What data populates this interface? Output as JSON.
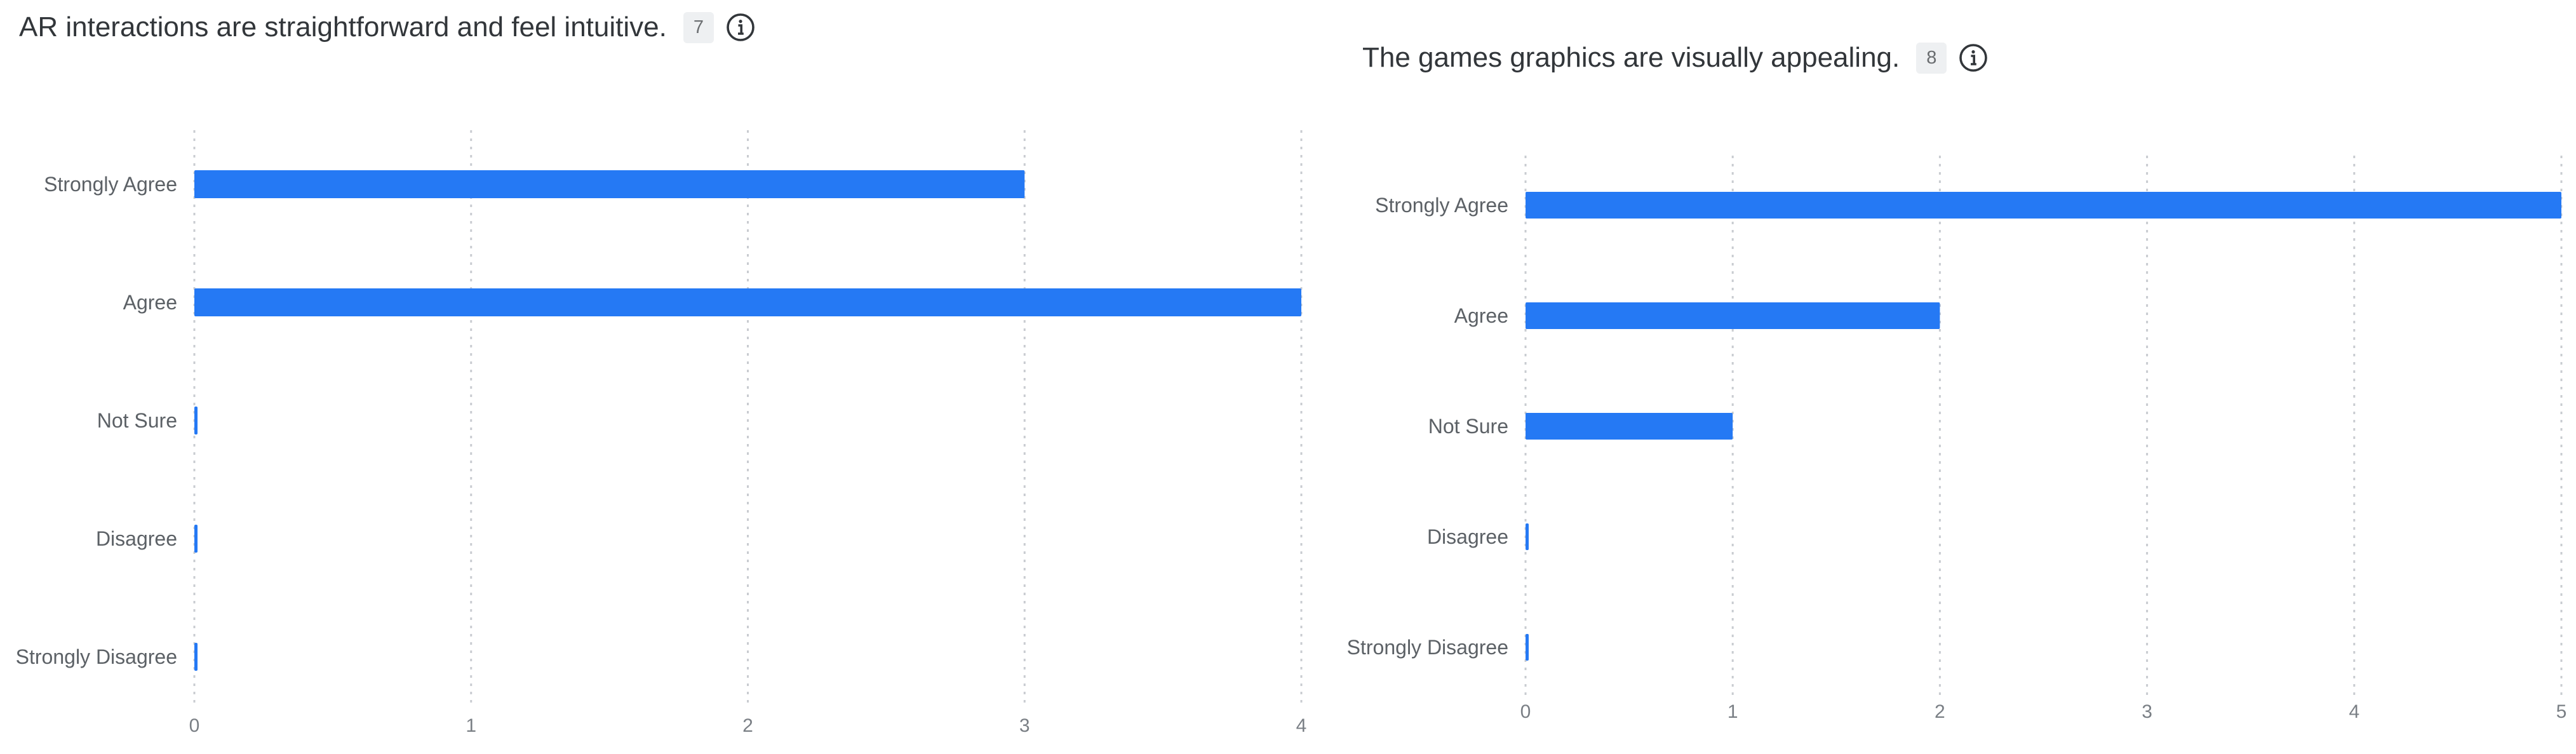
{
  "colors": {
    "bar": "#2579f4",
    "grid": "#c9ccd1"
  },
  "questions": [
    {
      "title": "AR interactions are straightforward and feel intuitive.",
      "count": "7",
      "info_icon": "info-circle-icon"
    },
    {
      "title": "The games graphics are visually appealing.",
      "count": "8",
      "info_icon": "info-circle-icon"
    }
  ],
  "chart_data": [
    {
      "type": "bar",
      "orientation": "horizontal",
      "title": "AR interactions are straightforward and feel intuitive.",
      "categories": [
        "Strongly Agree",
        "Agree",
        "Not Sure",
        "Disagree",
        "Strongly Disagree"
      ],
      "values": [
        3,
        4,
        0,
        0,
        0
      ],
      "xlim": [
        0,
        4
      ],
      "xticks": [
        "0",
        "1",
        "2",
        "3",
        "4"
      ],
      "grid": true
    },
    {
      "type": "bar",
      "orientation": "horizontal",
      "title": "The games graphics are visually appealing.",
      "categories": [
        "Strongly Agree",
        "Agree",
        "Not Sure",
        "Disagree",
        "Strongly Disagree"
      ],
      "values": [
        5,
        2,
        1,
        0,
        0
      ],
      "xlim": [
        0,
        5
      ],
      "xticks": [
        "0",
        "1",
        "2",
        "3",
        "4",
        "5"
      ],
      "grid": true
    }
  ]
}
